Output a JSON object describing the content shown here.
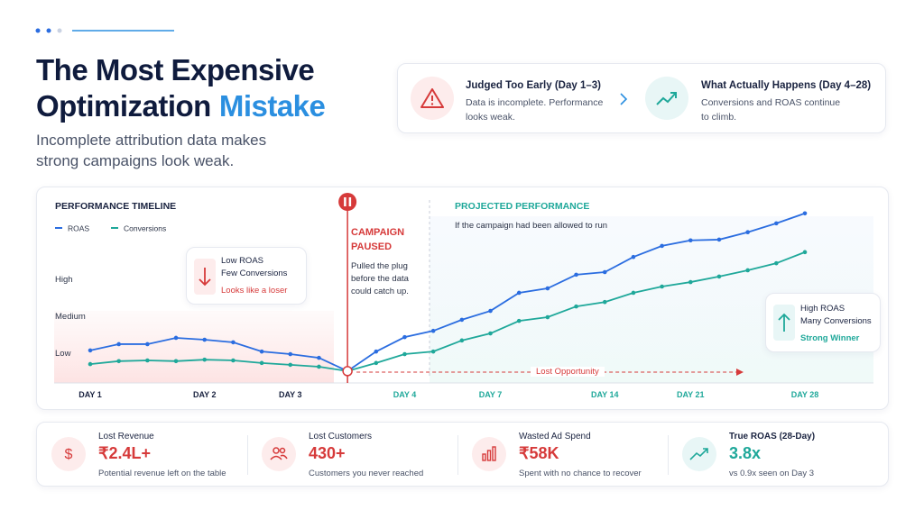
{
  "header": {
    "title_line1": "The Most Expensive",
    "title_line2": "Optimization",
    "title_highlight": "Mistake",
    "subtitle": "Incomplete attribution data makes strong campaigns look weak."
  },
  "comparison": {
    "left": {
      "title": "Judged Too Early (Day 1–3)",
      "text": "Data is incomplete. Performance looks weak."
    },
    "right": {
      "title": "What Actually Happens (Day 4–28)",
      "text": "Conversions and ROAS continue to climb."
    }
  },
  "chart_data": {
    "type": "line",
    "title": "PERFORMANCE TIMELINE",
    "categories": [
      "DAY 1",
      null,
      null,
      null,
      "DAY 2",
      null,
      null,
      "DAY 3",
      null,
      null,
      null,
      "DAY 4",
      null,
      null,
      "DAY 7",
      null,
      null,
      null,
      "DAY 14",
      null,
      null,
      "DAY 21",
      null,
      null,
      null,
      "DAY 28"
    ],
    "series": [
      {
        "name": "ROAS",
        "color": "#2b6de0",
        "values": [
          1.08,
          1.25,
          1.25,
          1.42,
          1.37,
          1.3,
          1.05,
          0.98,
          0.88,
          0.52,
          1.05,
          1.44,
          1.61,
          1.91,
          2.15,
          2.64,
          2.76,
          3.13,
          3.2,
          3.61,
          3.91,
          4.06,
          4.08,
          4.28,
          4.52,
          4.79
        ]
      },
      {
        "name": "Conversions",
        "color": "#1fa89a",
        "values": [
          0.71,
          0.79,
          0.81,
          0.79,
          0.83,
          0.81,
          0.74,
          0.69,
          0.64,
          0.52,
          0.74,
          0.98,
          1.05,
          1.35,
          1.54,
          1.88,
          1.98,
          2.27,
          2.39,
          2.64,
          2.81,
          2.93,
          3.08,
          3.25,
          3.44,
          3.74
        ]
      }
    ],
    "ylim": [
      0.2,
      4.8
    ],
    "yticks": [
      {
        "value": 1,
        "label": "Low"
      },
      {
        "value": 2,
        "label": "Medium"
      },
      {
        "value": 3,
        "label": "High"
      }
    ],
    "grid": false,
    "annotations": {
      "early_title": "Low ROAS",
      "early_sub": "Few Conversions",
      "early_note": "Looks like a loser",
      "pause_title": "CAMPAIGN PAUSED",
      "pause_text": "Pulled the plug before the data could catch up.",
      "projected_title": "PROJECTED PERFORMANCE",
      "projected_text": "If the campaign had been allowed to run",
      "lost": "Lost Opportunity",
      "late_title": "High ROAS",
      "late_sub": "Many Conversions",
      "late_note": "Strong Winner"
    }
  },
  "stats": [
    {
      "label": "Lost Revenue",
      "value": "₹2.4L+",
      "note": "Potential revenue left on the table"
    },
    {
      "label": "Lost Customers",
      "value": "430+",
      "note": "Customers you never reached"
    },
    {
      "label": "Wasted Ad Spend",
      "value": "₹58K",
      "note": "Spent with no chance to recover"
    },
    {
      "label": "True ROAS (28-Day)",
      "value": "3.8x",
      "note": "vs 0.9x seen on Day 3"
    }
  ]
}
